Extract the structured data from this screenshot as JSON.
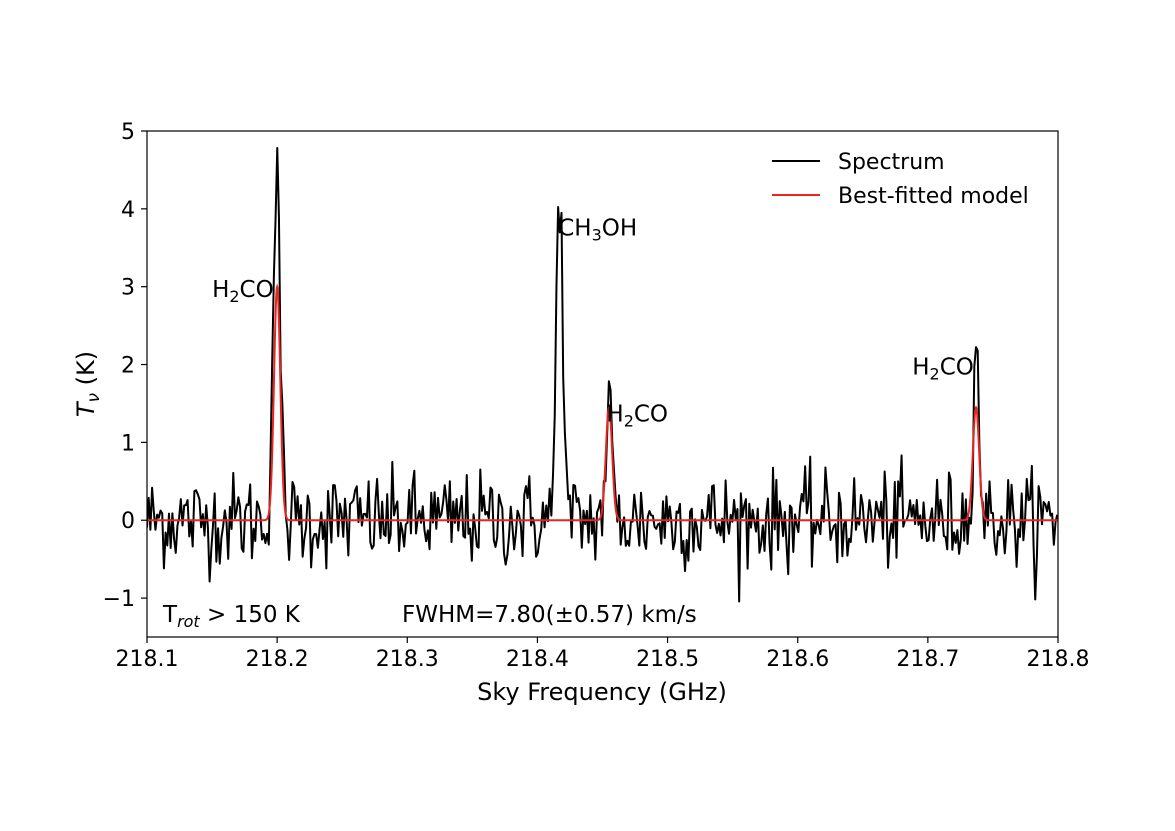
{
  "chart_data": {
    "type": "line",
    "xlabel": "Sky Frequency (GHz)",
    "ylabel_base": "T",
    "ylabel_sub": "ν",
    "ylabel_unit": " (K)",
    "xlim": [
      218.1,
      218.8
    ],
    "ylim": [
      -1.5,
      5
    ],
    "xticks": [
      218.1,
      218.2,
      218.3,
      218.4,
      218.5,
      218.6,
      218.7,
      218.8
    ],
    "xtick_labels": [
      "218.1",
      "218.2",
      "218.3",
      "218.4",
      "218.5",
      "218.6",
      "218.7",
      "218.8"
    ],
    "yticks": [
      -1,
      0,
      1,
      2,
      3,
      4,
      5
    ],
    "ytick_labels": [
      "−1",
      "0",
      "1",
      "2",
      "3",
      "4",
      "5"
    ],
    "grid": false,
    "legend": {
      "placement": "top-right"
    },
    "colors": {
      "spectrum": "#000000",
      "model": "#e8251f"
    },
    "series": [
      {
        "name": "Spectrum",
        "noise_rms": 0.3,
        "peaks": [
          {
            "center": 218.199,
            "height": 3.3
          },
          {
            "center": 218.201,
            "height": 1.45
          },
          {
            "center": 218.417,
            "height": 4.4
          },
          {
            "center": 218.455,
            "height": 1.45
          },
          {
            "center": 218.737,
            "height": 2.2
          }
        ]
      },
      {
        "name": "Best-fitted model",
        "peaks": [
          {
            "center": 218.2,
            "height": 3.0
          },
          {
            "center": 218.455,
            "height": 1.45
          },
          {
            "center": 218.737,
            "height": 1.45
          }
        ]
      }
    ],
    "annotations": [
      {
        "base": "H",
        "sub": "2",
        "rest": "CO",
        "x": 218.15,
        "y": 2.87
      },
      {
        "base": "CH",
        "sub": "3",
        "rest": "OH",
        "x": 218.416,
        "y": 3.66
      },
      {
        "base": "H",
        "sub": "2",
        "rest": "CO",
        "x": 218.453,
        "y": 1.27
      },
      {
        "base": "H",
        "sub": "2",
        "rest": "CO",
        "x": 218.688,
        "y": 1.87
      }
    ],
    "info_text": {
      "trot_base": "T",
      "trot_sub": "rot",
      "trot_rest": " > 150 K",
      "fwhm": "FWHM=7.80(±0.57) km/s"
    }
  }
}
